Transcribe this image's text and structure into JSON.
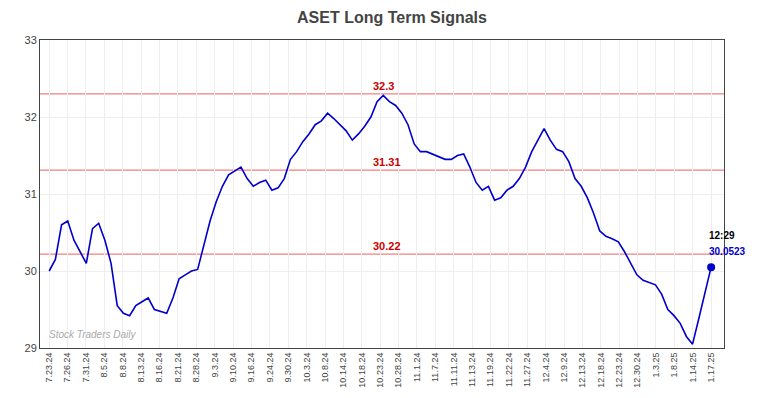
{
  "chart_data": {
    "type": "line",
    "title": "ASET Long Term Signals",
    "color": "#0000cc",
    "values": [
      30.0,
      30.15,
      30.6,
      30.65,
      30.4,
      30.25,
      30.1,
      30.55,
      30.62,
      30.4,
      30.1,
      29.55,
      29.45,
      29.42,
      29.55,
      29.6,
      29.65,
      29.5,
      29.48,
      29.45,
      29.65,
      29.9,
      29.95,
      30.0,
      30.02,
      30.35,
      30.65,
      30.9,
      31.1,
      31.25,
      31.3,
      31.35,
      31.2,
      31.1,
      31.15,
      31.18,
      31.05,
      31.08,
      31.2,
      31.45,
      31.55,
      31.68,
      31.78,
      31.9,
      31.95,
      32.05,
      31.98,
      31.9,
      31.82,
      31.7,
      31.78,
      31.88,
      32.0,
      32.2,
      32.28,
      32.2,
      32.15,
      32.05,
      31.9,
      31.65,
      31.55,
      31.55,
      31.52,
      31.48,
      31.45,
      31.45,
      31.5,
      31.52,
      31.35,
      31.15,
      31.05,
      31.1,
      30.92,
      30.95,
      31.05,
      31.1,
      31.2,
      31.35,
      31.55,
      31.7,
      31.85,
      31.7,
      31.58,
      31.55,
      31.42,
      31.2,
      31.1,
      30.95,
      30.75,
      30.52,
      30.45,
      30.42,
      30.38,
      30.25,
      30.1,
      29.95,
      29.88,
      29.85,
      29.82,
      29.7,
      29.5,
      29.42,
      29.32,
      29.15,
      29.05,
      29.38,
      29.72,
      30.05
    ],
    "xlim": [
      -0.5,
      36.7
    ],
    "xticks": [
      {
        "value": 0,
        "label": "7.23.24"
      },
      {
        "value": 1,
        "label": "7.26.24"
      },
      {
        "value": 2,
        "label": "7.31.24"
      },
      {
        "value": 3,
        "label": "8.5.24"
      },
      {
        "value": 4,
        "label": "8.8.24"
      },
      {
        "value": 5,
        "label": "8.13.24"
      },
      {
        "value": 6,
        "label": "8.16.24"
      },
      {
        "value": 7,
        "label": "8.21.24"
      },
      {
        "value": 8,
        "label": "8.28.24"
      },
      {
        "value": 9,
        "label": "9.3.24"
      },
      {
        "value": 10,
        "label": "9.10.24"
      },
      {
        "value": 11,
        "label": "9.16.24"
      },
      {
        "value": 12,
        "label": "9.24.24"
      },
      {
        "value": 13,
        "label": "9.30.24"
      },
      {
        "value": 14,
        "label": "10.3.24"
      },
      {
        "value": 15,
        "label": "10.8.24"
      },
      {
        "value": 16,
        "label": "10.14.24"
      },
      {
        "value": 17,
        "label": "10.18.24"
      },
      {
        "value": 18,
        "label": "10.23.24"
      },
      {
        "value": 19,
        "label": "10.28.24"
      },
      {
        "value": 20,
        "label": "11.1.24"
      },
      {
        "value": 21,
        "label": "11.7.24"
      },
      {
        "value": 22,
        "label": "11.11.24"
      },
      {
        "value": 23,
        "label": "11.13.24"
      },
      {
        "value": 24,
        "label": "11.19.24"
      },
      {
        "value": 25,
        "label": "11.22.24"
      },
      {
        "value": 26,
        "label": "11.27.24"
      },
      {
        "value": 27,
        "label": "12.4.24"
      },
      {
        "value": 28,
        "label": "12.9.24"
      },
      {
        "value": 29,
        "label": "12.13.24"
      },
      {
        "value": 30,
        "label": "12.18.24"
      },
      {
        "value": 31,
        "label": "12.23.24"
      },
      {
        "value": 32,
        "label": "12.30.24"
      },
      {
        "value": 33,
        "label": "1.3.25"
      },
      {
        "value": 34,
        "label": "1.8.25"
      },
      {
        "value": 35,
        "label": "1.14.25"
      },
      {
        "value": 36,
        "label": "1.17.25"
      }
    ],
    "ylim": [
      29,
      33
    ],
    "yticks": [
      29,
      30,
      31,
      32,
      33
    ],
    "grid": true,
    "hlines": [
      {
        "value": 30.22,
        "color": "#f08080",
        "label": {
          "text": "30.22",
          "color": "#cc0000"
        }
      },
      {
        "value": 31.31,
        "color": "#f08080",
        "label": {
          "text": "31.31",
          "color": "#cc0000"
        }
      },
      {
        "value": 32.3,
        "color": "#f08080",
        "label": {
          "text": "32.3",
          "color": "#cc0000"
        }
      }
    ],
    "last_point_labels": [
      {
        "text": "12:29",
        "color": "#000000"
      },
      {
        "text": "30.0523",
        "color": "#0000cc"
      }
    ],
    "watermark": {
      "text": "Stock Traders Daily",
      "color": "#aaaaaa"
    }
  }
}
